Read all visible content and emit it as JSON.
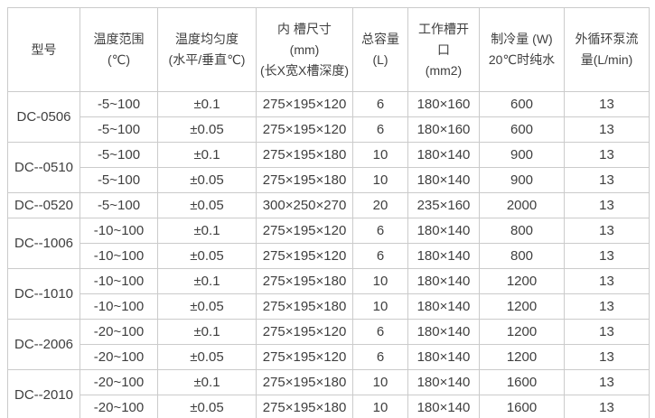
{
  "colors": {
    "background": "#ffffff",
    "border": "#cbcbcb",
    "text": "#3f3f3f"
  },
  "table": {
    "columns": [
      {
        "id": "model",
        "label_lines": [
          "型号"
        ]
      },
      {
        "id": "temp_range",
        "label_lines": [
          "温度范围",
          "(℃)"
        ]
      },
      {
        "id": "uniformity",
        "label_lines": [
          "温度均匀度",
          "(水平/垂直℃)"
        ]
      },
      {
        "id": "tank_size",
        "label_lines": [
          "内 槽尺寸",
          "(mm)",
          "(长X宽X槽深度)"
        ]
      },
      {
        "id": "capacity",
        "label_lines": [
          "总容量",
          "(L)"
        ]
      },
      {
        "id": "opening",
        "label_lines": [
          "工作槽开",
          "口",
          "(mm2)"
        ]
      },
      {
        "id": "cooling",
        "label_lines": [
          "制冷量 (W)",
          "20℃时纯水"
        ]
      },
      {
        "id": "pump_flow",
        "label_lines": [
          "外循环泵流",
          "量(L/min)"
        ]
      }
    ],
    "groups": [
      {
        "model": "DC-0506",
        "variants": [
          {
            "temp_range": "-5~100",
            "uniformity": "±0.1",
            "tank_size": "275×195×120",
            "capacity": "6",
            "opening": "180×160",
            "cooling": "600",
            "pump_flow": "13"
          },
          {
            "temp_range": "-5~100",
            "uniformity": "±0.05",
            "tank_size": "275×195×120",
            "capacity": "6",
            "opening": "180×160",
            "cooling": "600",
            "pump_flow": "13"
          }
        ]
      },
      {
        "model": "DC--0510",
        "variants": [
          {
            "temp_range": "-5~100",
            "uniformity": "±0.1",
            "tank_size": "275×195×180",
            "capacity": "10",
            "opening": "180×140",
            "cooling": "900",
            "pump_flow": "13"
          },
          {
            "temp_range": "-5~100",
            "uniformity": "±0.05",
            "tank_size": "275×195×180",
            "capacity": "10",
            "opening": "180×140",
            "cooling": "900",
            "pump_flow": "13"
          }
        ]
      },
      {
        "model": "DC--0520",
        "variants": [
          {
            "temp_range": "-5~100",
            "uniformity": "±0.05",
            "tank_size": "300×250×270",
            "capacity": "20",
            "opening": "235×160",
            "cooling": "2000",
            "pump_flow": "13"
          }
        ]
      },
      {
        "model": "DC--1006",
        "variants": [
          {
            "temp_range": "-10~100",
            "uniformity": "±0.1",
            "tank_size": "275×195×120",
            "capacity": "6",
            "opening": "180×140",
            "cooling": "800",
            "pump_flow": "13"
          },
          {
            "temp_range": "-10~100",
            "uniformity": "±0.05",
            "tank_size": "275×195×120",
            "capacity": "6",
            "opening": "180×140",
            "cooling": "800",
            "pump_flow": "13"
          }
        ]
      },
      {
        "model": "DC--1010",
        "variants": [
          {
            "temp_range": "-10~100",
            "uniformity": "±0.1",
            "tank_size": "275×195×180",
            "capacity": "10",
            "opening": "180×140",
            "cooling": "1200",
            "pump_flow": "13"
          },
          {
            "temp_range": "-10~100",
            "uniformity": "±0.05",
            "tank_size": "275×195×180",
            "capacity": "10",
            "opening": "180×140",
            "cooling": "1200",
            "pump_flow": "13"
          }
        ]
      },
      {
        "model": "DC--2006",
        "variants": [
          {
            "temp_range": "-20~100",
            "uniformity": "±0.1",
            "tank_size": "275×195×120",
            "capacity": "6",
            "opening": "180×140",
            "cooling": "1200",
            "pump_flow": "13"
          },
          {
            "temp_range": "-20~100",
            "uniformity": "±0.05",
            "tank_size": "275×195×120",
            "capacity": "6",
            "opening": "180×140",
            "cooling": "1200",
            "pump_flow": "13"
          }
        ]
      },
      {
        "model": "DC--2010",
        "variants": [
          {
            "temp_range": "-20~100",
            "uniformity": "±0.1",
            "tank_size": "275×195×180",
            "capacity": "10",
            "opening": "180×140",
            "cooling": "1600",
            "pump_flow": "13"
          },
          {
            "temp_range": "-20~100",
            "uniformity": "±0.05",
            "tank_size": "275×195×180",
            "capacity": "10",
            "opening": "180×140",
            "cooling": "1600",
            "pump_flow": "13"
          }
        ]
      }
    ]
  }
}
